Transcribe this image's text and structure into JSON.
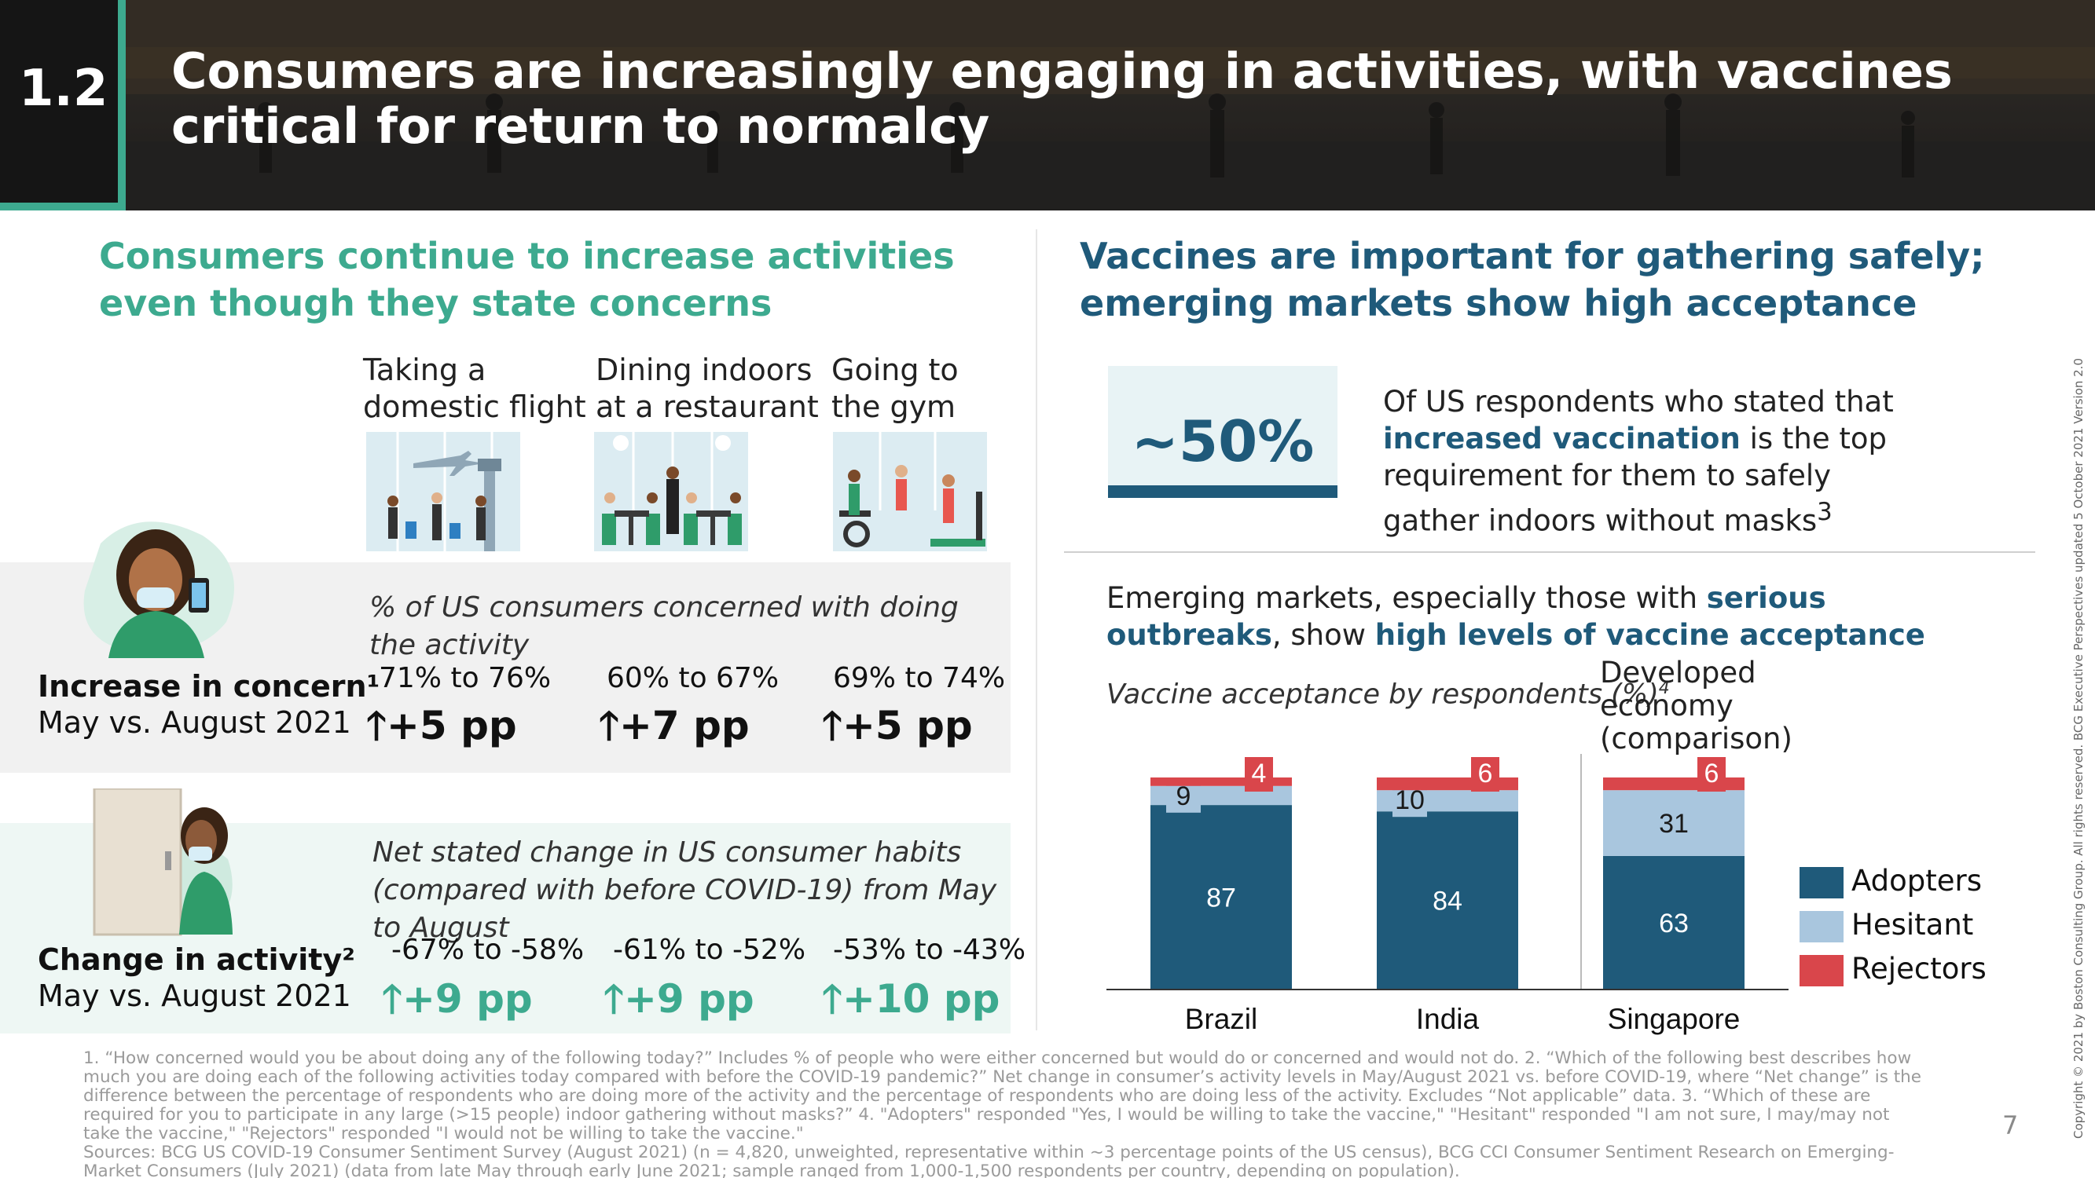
{
  "header": {
    "section_number": "1.2",
    "title": "Consumers are increasingly engaging in activities, with vaccines critical for return to normalcy"
  },
  "left": {
    "heading": "Consumers continue to increase activities even though they state concerns",
    "activities": [
      {
        "label": "Taking a domestic flight",
        "icon": "airport-illustration"
      },
      {
        "label": "Dining indoors at a restaurant",
        "icon": "restaurant-illustration"
      },
      {
        "label": "Going to the gym",
        "icon": "gym-illustration"
      }
    ],
    "concern": {
      "title": "Increase in concern¹",
      "period": "May vs. August 2021",
      "subtitle": "% of US consumers concerned with doing the activity",
      "values": [
        {
          "range": "71% to 76%",
          "change": "+5 pp"
        },
        {
          "range": "60% to 67%",
          "change": "+7 pp"
        },
        {
          "range": "69% to 74%",
          "change": "+5 pp"
        }
      ]
    },
    "activity": {
      "title": "Change in activity²",
      "period": "May vs. August 2021",
      "subtitle": "Net stated change in US consumer habits (compared with before COVID-19) from May to August",
      "values": [
        {
          "range": "-67% to -58%",
          "change": "+9 pp"
        },
        {
          "range": "-61% to -52%",
          "change": "+9 pp"
        },
        {
          "range": "-53% to -43%",
          "change": "+10 pp"
        }
      ]
    }
  },
  "right": {
    "heading": "Vaccines are important for gathering safely; emerging markets show high acceptance",
    "stat": {
      "value": "~50%",
      "text_before": "Of US respondents who stated that ",
      "text_highlight": "increased vaccination",
      "text_after": " is the top requirement for them to safely gather indoors without masks",
      "footnote_mark": "3"
    },
    "emerging": {
      "part1": "Emerging markets, especially those with ",
      "hl1": "serious outbreaks",
      "part2": ", show ",
      "hl2": "high levels of vaccine acceptance"
    },
    "chart_subtitle": "Vaccine acceptance by respondents (%)",
    "chart_subtitle_mark": "4",
    "developed_label": "Developed economy (comparison)"
  },
  "chart_data": {
    "type": "bar",
    "stacked": true,
    "title": "Vaccine acceptance by respondents (%)",
    "categories": [
      "Brazil",
      "India",
      "Singapore"
    ],
    "series": [
      {
        "name": "Adopters",
        "values": [
          87,
          84,
          63
        ],
        "color": "#1f5a7a"
      },
      {
        "name": "Hesitant",
        "values": [
          9,
          10,
          31
        ],
        "color": "#a9c6de"
      },
      {
        "name": "Rejectors",
        "values": [
          4,
          6,
          6
        ],
        "color": "#d9464b"
      }
    ],
    "ylim": [
      0,
      100
    ],
    "grid": false,
    "legend": "right"
  },
  "colors": {
    "teal": "#3daa8f",
    "navy": "#1f5a7a",
    "light_blue": "#a9c6de",
    "red": "#d9464b"
  },
  "footer": {
    "footnotes": "1. “How concerned would you be about doing any of the following today?” Includes % of people who were either concerned but would do or concerned and would not do. 2. “Which of the following best describes how much you are doing each of the following activities today compared with before the COVID-19 pandemic?” Net change in consumer’s activity levels in May/August 2021 vs. before COVID-19, where “Net change” is the difference between the percentage of respondents who are doing more of the activity and the percentage of respondents who are doing less of the activity. Excludes “Not applicable” data. 3. “Which of these are required for you to participate in any large (>15 people) indoor gathering without masks?” 4. \"Adopters\" responded \"Yes, I would be willing to take the vaccine,\" \"Hesitant\" responded \"I am not sure, I may/may not take the vaccine,\" \"Rejectors\" responded \"I would not be willing to take the vaccine.\"",
    "sources": "Sources: BCG US COVID-19 Consumer Sentiment Survey (August 2021) (n = 4,820, unweighted, representative within ~3 percentage points of the US census), BCG CCI Consumer Sentiment Research on Emerging-Market Consumers (July 2021) (data from late May through early June 2021; sample ranged from 1,000-1,500 respondents per country, depending on population).",
    "page_number": "7",
    "copyright": "Copyright © 2021 by Boston Consulting Group. All rights reserved. BCG Executive Perspectives updated 5 October 2021 Version 2.0"
  }
}
